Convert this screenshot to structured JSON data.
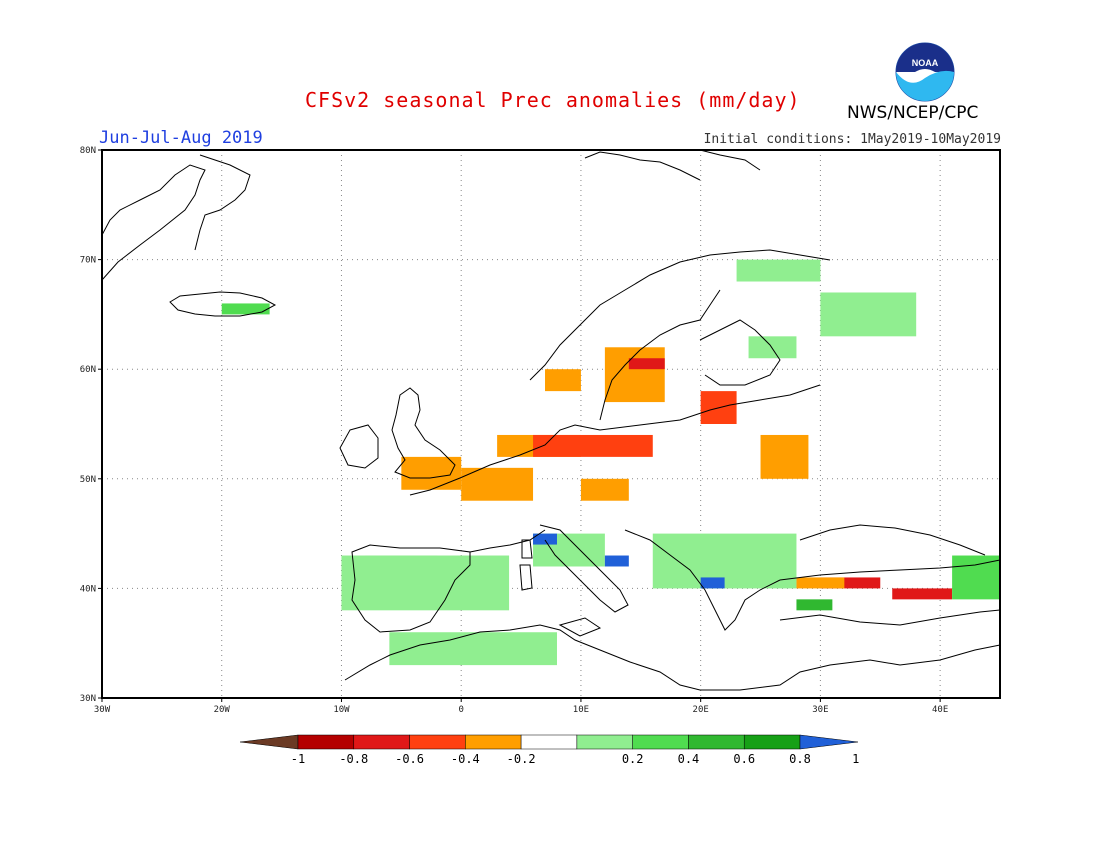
{
  "header": {
    "title": "CFSv2 seasonal Prec anomalies (mm/day)",
    "season": "Jun-Jul-Aug 2019",
    "initial_conditions": "Initial conditions: 1May2019-10May2019",
    "agency": "NWS/NCEP/CPC",
    "logo_text": "NOAA"
  },
  "map": {
    "lon_ticks": [
      "30W",
      "20W",
      "10W",
      "0",
      "10E",
      "20E",
      "30E",
      "40E"
    ],
    "lat_ticks": [
      "80N",
      "70N",
      "60N",
      "50N",
      "40N",
      "30N"
    ],
    "lon_range": [
      -30,
      45
    ],
    "lat_range": [
      30,
      80
    ],
    "anomaly_patches": [
      {
        "lon": [
          -5,
          0
        ],
        "lat": [
          49,
          52
        ],
        "level": "-0.3"
      },
      {
        "lon": [
          0,
          6
        ],
        "lat": [
          48,
          51
        ],
        "level": "-0.3"
      },
      {
        "lon": [
          3,
          10
        ],
        "lat": [
          52,
          54
        ],
        "level": "-0.3"
      },
      {
        "lon": [
          6,
          16
        ],
        "lat": [
          52,
          54
        ],
        "level": "-0.5"
      },
      {
        "lon": [
          12,
          17
        ],
        "lat": [
          57,
          62
        ],
        "level": "-0.3"
      },
      {
        "lon": [
          14,
          17
        ],
        "lat": [
          60,
          61
        ],
        "level": "-0.7"
      },
      {
        "lon": [
          7,
          10
        ],
        "lat": [
          58,
          60
        ],
        "level": "-0.3"
      },
      {
        "lon": [
          20,
          23
        ],
        "lat": [
          55,
          58
        ],
        "level": "-0.5"
      },
      {
        "lon": [
          25,
          29
        ],
        "lat": [
          50,
          54
        ],
        "level": "-0.3"
      },
      {
        "lon": [
          10,
          14
        ],
        "lat": [
          48,
          50
        ],
        "level": "-0.3"
      },
      {
        "lon": [
          30,
          35
        ],
        "lat": [
          40,
          41
        ],
        "level": "-0.7"
      },
      {
        "lon": [
          36,
          41
        ],
        "lat": [
          39,
          40
        ],
        "level": "-0.7"
      },
      {
        "lon": [
          28,
          32
        ],
        "lat": [
          40,
          41
        ],
        "level": "-0.3"
      },
      {
        "lon": [
          -8,
          -2
        ],
        "lat": [
          41,
          43
        ],
        "level": "0.5"
      },
      {
        "lon": [
          -10,
          4
        ],
        "lat": [
          38,
          43
        ],
        "level": "0.3"
      },
      {
        "lon": [
          -6,
          8
        ],
        "lat": [
          33,
          36
        ],
        "level": "0.3"
      },
      {
        "lon": [
          6,
          12
        ],
        "lat": [
          42,
          45
        ],
        "level": "0.3"
      },
      {
        "lon": [
          16,
          28
        ],
        "lat": [
          40,
          45
        ],
        "level": "0.3"
      },
      {
        "lon": [
          20,
          22
        ],
        "lat": [
          40,
          41
        ],
        "level": "0.9"
      },
      {
        "lon": [
          6,
          8
        ],
        "lat": [
          44,
          45
        ],
        "level": "0.9"
      },
      {
        "lon": [
          12,
          14
        ],
        "lat": [
          42,
          43
        ],
        "level": "0.9"
      },
      {
        "lon": [
          28,
          31
        ],
        "lat": [
          38,
          39
        ],
        "level": "0.7"
      },
      {
        "lon": [
          41,
          45
        ],
        "lat": [
          39,
          43
        ],
        "level": "0.5"
      },
      {
        "lon": [
          -20,
          -16
        ],
        "lat": [
          65,
          66
        ],
        "level": "0.5"
      },
      {
        "lon": [
          23,
          30
        ],
        "lat": [
          68,
          70
        ],
        "level": "0.3"
      },
      {
        "lon": [
          30,
          38
        ],
        "lat": [
          63,
          67
        ],
        "level": "0.3"
      },
      {
        "lon": [
          24,
          28
        ],
        "lat": [
          61,
          63
        ],
        "level": "0.3"
      }
    ]
  },
  "colorbar": {
    "labels": [
      "-1",
      "-0.8",
      "-0.6",
      "-0.4",
      "-0.2",
      "0.2",
      "0.4",
      "0.6",
      "0.8",
      "1"
    ],
    "colors": [
      "#6b3a24",
      "#b40000",
      "#e01818",
      "#ff4010",
      "#ff9e00",
      "#ffffff",
      "#90ee90",
      "#50dc50",
      "#30b830",
      "#16a016",
      "#2060d8"
    ]
  }
}
